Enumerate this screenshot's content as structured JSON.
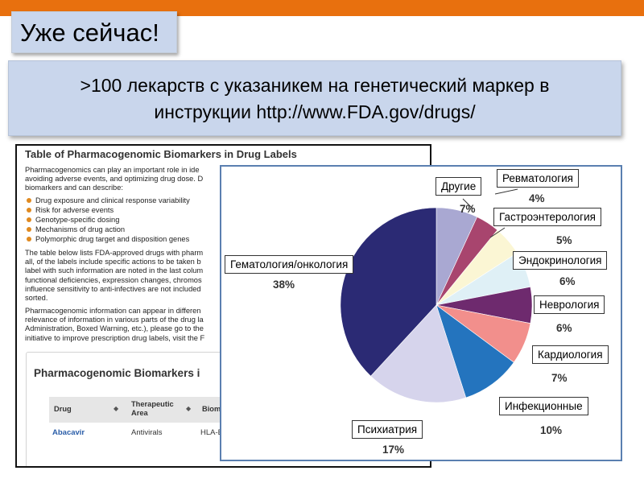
{
  "slide": {
    "badge": "Уже сейчас!",
    "headline_line1": ">100 лекарств с указаникем на генетический маркер в",
    "headline_line2": "инструкции http://www.FDA.gov/drugs/"
  },
  "document": {
    "title": "Table of Pharmacogenomic Biomarkers in Drug Labels",
    "intro_lines": [
      "Pharmacogenomics can play an important role in ide",
      "avoiding adverse events, and optimizing drug dose. D",
      "biomarkers and can describe:"
    ],
    "bullets": [
      "Drug exposure and clinical response variability",
      "Risk for adverse events",
      "Genotype-specific dosing",
      "Mechanisms of drug action",
      "Polymorphic drug target and disposition genes"
    ],
    "para2_lines": [
      "The table below lists FDA-approved drugs with pharm",
      "all, of the labels include specific actions to be taken b",
      "label with such information are noted in the last colum",
      "functional deficiencies, expression changes, chromos",
      "influence sensitivity to anti-infectives are not included",
      "sorted."
    ],
    "para3_lines": [
      "Pharmacogenomic information can appear in differen",
      "relevance of information in various parts of the drug la",
      "Administration, Boxed Warning, etc.), please go to the",
      "initiative to improve prescription drug labels, visit the F"
    ],
    "subtitle": "Pharmacogenomic Biomarkers i",
    "table_headers": [
      "Drug",
      "Therapeutic Area",
      "Biom"
    ],
    "table_row": [
      "Abacavir",
      "Antivirals",
      "HLA-B"
    ],
    "sort_glyph": "◆"
  },
  "chart_data": {
    "type": "pie",
    "categories": [
      "Другие",
      "Ревматология",
      "Гастроэнтерология",
      "Эндокринология",
      "Неврология",
      "Кардиология",
      "Инфекционные",
      "Психиатрия",
      "Гематология/онкология"
    ],
    "values": [
      7,
      4,
      5,
      6,
      6,
      7,
      10,
      17,
      38
    ],
    "labels": [
      "7%",
      "4%",
      "5%",
      "6%",
      "6%",
      "7%",
      "10%",
      "17%",
      "38%"
    ],
    "colors": [
      "#a9a8d2",
      "#a8456e",
      "#fbf6d4",
      "#dff0f6",
      "#6e2a6e",
      "#f28f8c",
      "#2474be",
      "#d6d4ec",
      "#2b2a74"
    ]
  }
}
